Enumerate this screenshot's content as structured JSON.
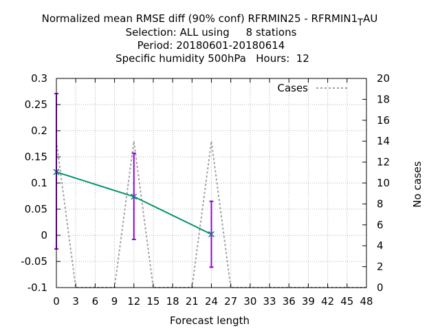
{
  "chart_data": {
    "type": "line",
    "title_lines": [
      "Normalized mean RMSE diff (90% conf) RFRMIN25 - RFRMIN1",
      "Selection: ALL using     8 stations",
      "Period: 20180601-20180614",
      "Specific humidity 500hPa   Hours:  12"
    ],
    "title_tail": {
      "sub": "T",
      "rest": "AU"
    },
    "xlabel": "Forecast length",
    "ylabel_left": "",
    "ylabel_right": "No cases",
    "xlim": [
      0,
      48
    ],
    "ylim": [
      -0.1,
      0.3
    ],
    "y2lim": [
      0,
      20
    ],
    "x_ticks": [
      0,
      3,
      6,
      9,
      12,
      15,
      18,
      21,
      24,
      27,
      30,
      33,
      36,
      39,
      42,
      45,
      48
    ],
    "y_ticks": [
      -0.1,
      -0.05,
      0,
      0.05,
      0.1,
      0.15,
      0.2,
      0.25,
      0.3
    ],
    "y_tick_labels": [
      "-0.1",
      "-0.05",
      "0",
      "0.05",
      "0.1",
      "0.15",
      "0.2",
      "0.25",
      "0.3"
    ],
    "y2_ticks": [
      0,
      2,
      4,
      6,
      8,
      10,
      12,
      14,
      16,
      18,
      20
    ],
    "grid": true,
    "legend": {
      "position": "top-right",
      "entries": [
        "Cases"
      ]
    },
    "series": [
      {
        "name": "",
        "style": "line-with-errorbars",
        "color": "#009070",
        "errorbar_color": "#9400d3",
        "points": [
          {
            "x": 0,
            "y": 0.121,
            "low": -0.026,
            "high": 0.271
          },
          {
            "x": 12,
            "y": 0.074,
            "low": -0.008,
            "high": 0.157
          },
          {
            "x": 24,
            "y": 0.002,
            "low": -0.061,
            "high": 0.065
          }
        ]
      },
      {
        "name": "Cases",
        "style": "dashed",
        "axis": "right",
        "color": "#a0a0a0",
        "x": [
          0,
          3,
          9,
          12,
          15,
          21,
          24,
          27,
          48
        ],
        "y": [
          14,
          0,
          0,
          14,
          0,
          0,
          14,
          0,
          0
        ]
      }
    ]
  }
}
